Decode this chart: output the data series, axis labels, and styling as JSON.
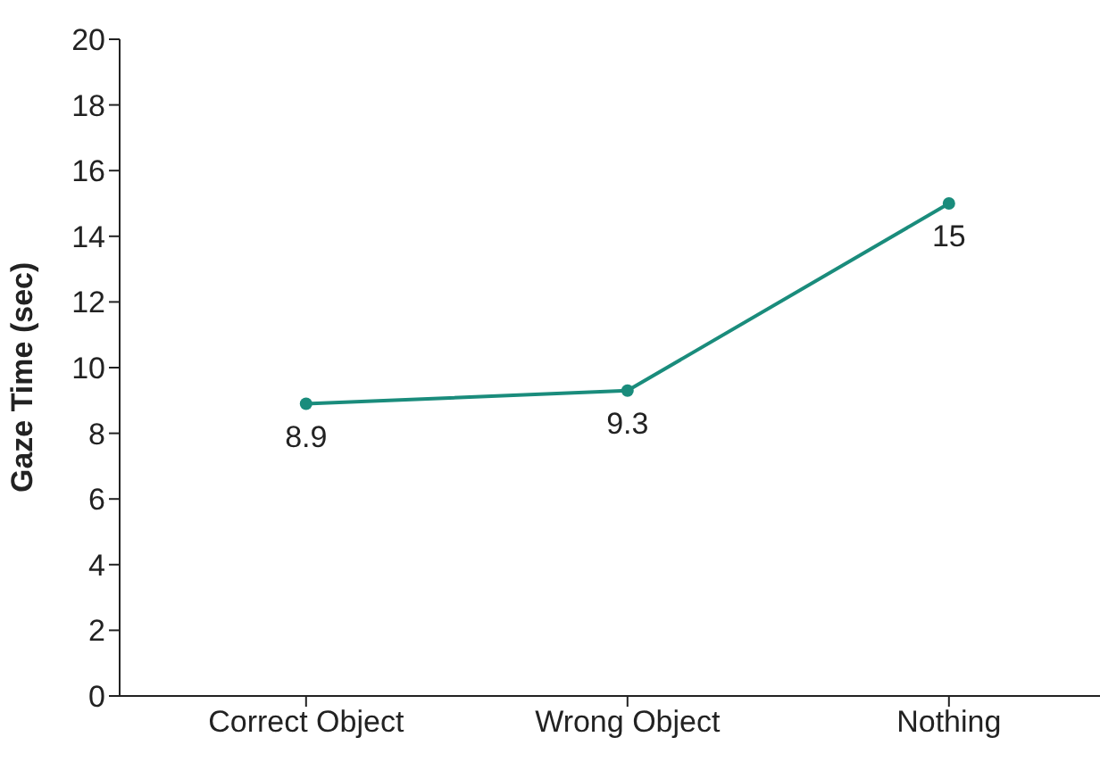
{
  "chart_data": {
    "type": "line",
    "ylabel": "Gaze Time (sec)",
    "categories": [
      "Correct Object",
      "Wrong Object",
      "Nothing"
    ],
    "series": [
      {
        "color": "#1a8c7c",
        "values": [
          8.9,
          9.3,
          15
        ]
      }
    ],
    "ylim": [
      0,
      20
    ],
    "yticks": [
      0,
      2,
      4,
      6,
      8,
      10,
      12,
      14,
      16,
      18,
      20
    ],
    "grid": false,
    "legend": false,
    "marker": "circle",
    "data_labels": true
  }
}
